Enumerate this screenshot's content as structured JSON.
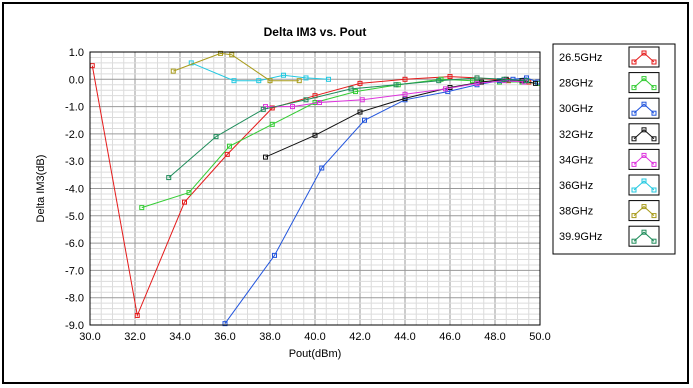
{
  "chart_data": {
    "type": "line",
    "title": "Delta IM3 vs. Pout",
    "xlabel": "Pout(dBm)",
    "ylabel": "Delta IM3(dB)",
    "xlim": [
      30.0,
      50.0
    ],
    "ylim": [
      -9.0,
      1.0
    ],
    "x_ticks": [
      "30.0",
      "32.0",
      "34.0",
      "36.0",
      "38.0",
      "40.0",
      "42.0",
      "44.0",
      "46.0",
      "48.0",
      "50.0"
    ],
    "y_ticks": [
      "1.0",
      "0.0",
      "-1.0",
      "-2.0",
      "-3.0",
      "-4.0",
      "-5.0",
      "-6.0",
      "-7.0",
      "-8.0",
      "-9.0"
    ],
    "grid": true,
    "legend_position": "right",
    "series": [
      {
        "name": "26.5GHz",
        "color": "#e41a1a",
        "x": [
          30.1,
          32.1,
          34.2,
          36.1,
          38.1,
          40.0,
          42.0,
          44.0,
          46.0,
          47.2,
          48.6,
          49.5
        ],
        "y": [
          0.5,
          -8.65,
          -4.5,
          -2.75,
          -1.05,
          -0.6,
          -0.15,
          0.0,
          0.1,
          0.05,
          -0.05,
          -0.1
        ]
      },
      {
        "name": "28GHz",
        "color": "#33cc33",
        "x": [
          32.3,
          34.4,
          36.2,
          38.1,
          40.0,
          41.8,
          43.7,
          45.6,
          47.0,
          48.2,
          49.2,
          49.9
        ],
        "y": [
          -4.7,
          -4.15,
          -2.45,
          -1.65,
          -0.85,
          -0.45,
          -0.2,
          0.0,
          -0.05,
          -0.1,
          -0.1,
          -0.15
        ]
      },
      {
        "name": "30GHz",
        "color": "#2255dd",
        "x": [
          36.0,
          38.2,
          40.3,
          42.2,
          44.0,
          45.9,
          47.2,
          48.2,
          48.8,
          49.4,
          49.9
        ],
        "y": [
          -8.95,
          -6.45,
          -3.25,
          -1.5,
          -0.75,
          -0.45,
          -0.2,
          -0.05,
          0.0,
          0.05,
          -0.1
        ]
      },
      {
        "name": "32GHz",
        "color": "#111111",
        "x": [
          37.8,
          40.0,
          42.0,
          44.0,
          46.0,
          47.4,
          48.5,
          49.2,
          49.8
        ],
        "y": [
          -2.85,
          -2.05,
          -1.2,
          -0.7,
          -0.3,
          -0.1,
          0.0,
          -0.05,
          -0.15
        ]
      },
      {
        "name": "34GHz",
        "color": "#dd33dd",
        "x": [
          37.8,
          39.0,
          40.2,
          42.1,
          44.0,
          45.8,
          47.2,
          48.4,
          49.3
        ],
        "y": [
          -1.0,
          -1.0,
          -0.85,
          -0.75,
          -0.55,
          -0.35,
          -0.15,
          -0.05,
          -0.1
        ]
      },
      {
        "name": "36GHz",
        "color": "#22c8e0",
        "x": [
          34.5,
          36.4,
          37.5,
          38.6,
          39.6,
          40.6
        ],
        "y": [
          0.6,
          -0.05,
          -0.05,
          0.15,
          0.05,
          0.0
        ]
      },
      {
        "name": "38GHz",
        "color": "#a89b1a",
        "x": [
          33.7,
          35.8,
          36.3,
          38.0,
          39.3
        ],
        "y": [
          0.3,
          0.95,
          0.9,
          -0.05,
          -0.05
        ]
      },
      {
        "name": "39.9GHz",
        "color": "#1e8c5a",
        "x": [
          33.5,
          35.6,
          37.7,
          39.6,
          41.6,
          43.6,
          45.5,
          47.2,
          48.4,
          49.4
        ],
        "y": [
          -3.6,
          -2.1,
          -1.1,
          -0.75,
          -0.35,
          -0.2,
          -0.05,
          0.05,
          0.0,
          -0.05
        ]
      }
    ]
  }
}
